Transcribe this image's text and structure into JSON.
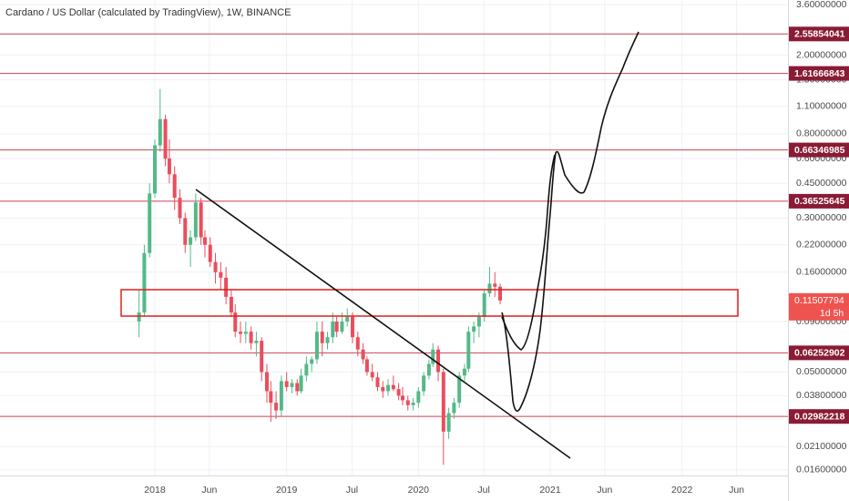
{
  "chart_data": {
    "type": "candlestick",
    "title": "Cardano / US Dollar (calculated by TradingView), 1W, BINANCE",
    "log_scale": true,
    "grid": true,
    "up_color": "#53b987",
    "down_color": "#eb4d5c",
    "xlim": [
      2016.825,
      2022.804
    ],
    "ylim": [
      0.015,
      3.8
    ],
    "xticks": [
      2018,
      {
        "value": 2018.414,
        "label": "Jun"
      },
      2019,
      {
        "value": 2019.496,
        "label": "Jul"
      },
      2020,
      {
        "value": 2020.496,
        "label": "Jul"
      },
      2021,
      {
        "value": 2021.414,
        "label": "Jun"
      },
      2022,
      {
        "value": 2022.414,
        "label": "Jun"
      }
    ],
    "yticks": [
      {
        "value": 3.6,
        "label": "3.60000000"
      },
      {
        "value": 2.0,
        "label": "2.00000000"
      },
      {
        "value": 1.5,
        "label": "1.50000000"
      },
      {
        "value": 1.1,
        "label": "1.10000000"
      },
      {
        "value": 0.8,
        "label": "0.80000000"
      },
      {
        "value": 0.6,
        "label": "0.60000000"
      },
      {
        "value": 0.45,
        "label": "0.45000000"
      },
      {
        "value": 0.3,
        "label": "0.30000000"
      },
      {
        "value": 0.22,
        "label": "0.22000000"
      },
      {
        "value": 0.16,
        "label": "0.16000000"
      },
      {
        "value": 0.09,
        "label": "0.09000000"
      },
      {
        "value": 0.05,
        "label": "0.05000000"
      },
      {
        "value": 0.038,
        "label": "0.03800000"
      },
      {
        "value": 0.021,
        "label": "0.02100000"
      },
      {
        "value": 0.016,
        "label": "0.01600000"
      }
    ],
    "price_lines": [
      {
        "value": 2.55854041,
        "label": "2.55854041"
      },
      {
        "value": 1.61666843,
        "label": "1.61666843"
      },
      {
        "value": 0.66346985,
        "label": "0.66346985"
      },
      {
        "value": 0.36525645,
        "label": "0.36525645"
      },
      {
        "value": 0.06252902,
        "label": "0.06252902"
      },
      {
        "value": 0.02982218,
        "label": "0.02982218"
      }
    ],
    "price_line_color": "#c74455",
    "price_label_color": "#8a1b35",
    "last_price": {
      "value": 0.11507794,
      "label": "0.11507794",
      "countdown": "1d 5h",
      "color": "#ef5350"
    },
    "candles": {
      "x": [
        2017.88,
        2017.92,
        2017.96,
        2018.0,
        2018.04,
        2018.08,
        2018.11,
        2018.15,
        2018.19,
        2018.23,
        2018.27,
        2018.31,
        2018.35,
        2018.38,
        2018.42,
        2018.46,
        2018.5,
        2018.54,
        2018.58,
        2018.61,
        2018.65,
        2018.69,
        2018.73,
        2018.77,
        2018.81,
        2018.85,
        2018.88,
        2018.92,
        2018.96,
        2019.0,
        2019.04,
        2019.08,
        2019.11,
        2019.15,
        2019.19,
        2019.23,
        2019.27,
        2019.31,
        2019.35,
        2019.38,
        2019.42,
        2019.46,
        2019.5,
        2019.54,
        2019.58,
        2019.61,
        2019.65,
        2019.69,
        2019.73,
        2019.77,
        2019.81,
        2019.85,
        2019.88,
        2019.92,
        2019.96,
        2020.0,
        2020.04,
        2020.08,
        2020.11,
        2020.15,
        2020.19,
        2020.23,
        2020.27,
        2020.31,
        2020.35,
        2020.38,
        2020.42,
        2020.46,
        2020.5,
        2020.54,
        2020.58,
        2020.62
      ],
      "open": [
        0.09,
        0.1,
        0.2,
        0.4,
        0.7,
        0.95,
        0.6,
        0.5,
        0.38,
        0.3,
        0.22,
        0.24,
        0.36,
        0.24,
        0.22,
        0.18,
        0.16,
        0.15,
        0.12,
        0.1,
        0.08,
        0.078,
        0.08,
        0.07,
        0.072,
        0.05,
        0.04,
        0.035,
        0.032,
        0.045,
        0.042,
        0.044,
        0.04,
        0.048,
        0.055,
        0.058,
        0.08,
        0.07,
        0.075,
        0.09,
        0.08,
        0.09,
        0.095,
        0.075,
        0.065,
        0.058,
        0.05,
        0.047,
        0.042,
        0.04,
        0.043,
        0.041,
        0.038,
        0.036,
        0.034,
        0.035,
        0.04,
        0.048,
        0.055,
        0.065,
        0.05,
        0.025,
        0.031,
        0.035,
        0.048,
        0.052,
        0.08,
        0.085,
        0.095,
        0.125,
        0.14,
        0.135
      ],
      "high": [
        0.13,
        0.22,
        0.45,
        0.75,
        1.35,
        1.0,
        0.75,
        0.55,
        0.42,
        0.32,
        0.26,
        0.4,
        0.38,
        0.26,
        0.24,
        0.2,
        0.18,
        0.17,
        0.13,
        0.11,
        0.09,
        0.09,
        0.085,
        0.08,
        0.075,
        0.055,
        0.045,
        0.04,
        0.048,
        0.05,
        0.046,
        0.046,
        0.052,
        0.06,
        0.06,
        0.09,
        0.09,
        0.08,
        0.1,
        0.095,
        0.1,
        0.105,
        0.1,
        0.08,
        0.07,
        0.06,
        0.055,
        0.05,
        0.045,
        0.046,
        0.048,
        0.044,
        0.042,
        0.038,
        0.037,
        0.042,
        0.05,
        0.058,
        0.07,
        0.068,
        0.052,
        0.033,
        0.037,
        0.05,
        0.055,
        0.085,
        0.09,
        0.1,
        0.13,
        0.17,
        0.16,
        0.14
      ],
      "low": [
        0.075,
        0.095,
        0.19,
        0.38,
        0.65,
        0.55,
        0.45,
        0.33,
        0.28,
        0.2,
        0.17,
        0.23,
        0.22,
        0.19,
        0.17,
        0.14,
        0.13,
        0.11,
        0.095,
        0.075,
        0.07,
        0.07,
        0.065,
        0.06,
        0.045,
        0.035,
        0.028,
        0.029,
        0.03,
        0.04,
        0.039,
        0.038,
        0.039,
        0.045,
        0.05,
        0.055,
        0.06,
        0.065,
        0.07,
        0.075,
        0.078,
        0.085,
        0.07,
        0.06,
        0.055,
        0.048,
        0.045,
        0.04,
        0.037,
        0.038,
        0.04,
        0.036,
        0.034,
        0.032,
        0.032,
        0.033,
        0.038,
        0.046,
        0.053,
        0.045,
        0.017,
        0.023,
        0.029,
        0.033,
        0.045,
        0.05,
        0.07,
        0.075,
        0.09,
        0.12,
        0.12,
        0.11
      ],
      "close": [
        0.1,
        0.2,
        0.4,
        0.7,
        0.95,
        0.6,
        0.5,
        0.38,
        0.3,
        0.22,
        0.24,
        0.36,
        0.24,
        0.22,
        0.18,
        0.16,
        0.15,
        0.12,
        0.1,
        0.08,
        0.078,
        0.08,
        0.07,
        0.072,
        0.05,
        0.04,
        0.035,
        0.032,
        0.045,
        0.042,
        0.044,
        0.04,
        0.048,
        0.055,
        0.058,
        0.08,
        0.07,
        0.075,
        0.09,
        0.08,
        0.09,
        0.095,
        0.075,
        0.065,
        0.058,
        0.05,
        0.047,
        0.042,
        0.04,
        0.043,
        0.041,
        0.038,
        0.036,
        0.034,
        0.035,
        0.04,
        0.048,
        0.055,
        0.065,
        0.05,
        0.025,
        0.031,
        0.035,
        0.048,
        0.052,
        0.08,
        0.085,
        0.095,
        0.125,
        0.14,
        0.135,
        0.115
      ]
    }
  }
}
